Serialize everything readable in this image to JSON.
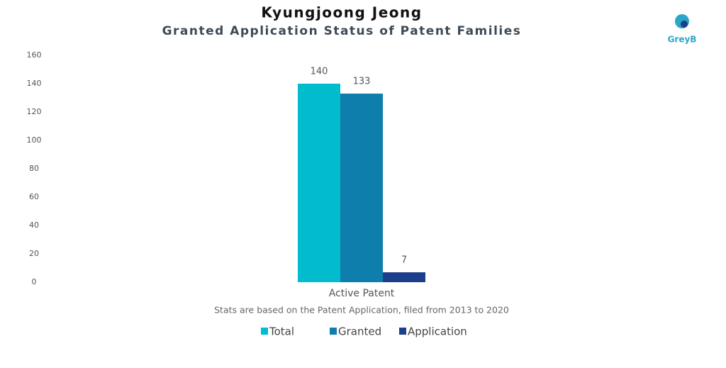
{
  "chart_data": {
    "type": "bar",
    "title": "Kyungjoong Jeong",
    "subtitle": "Granted Application Status of Patent Families",
    "logo": "GreyB",
    "note": "Stats are based on the Patent Application, filed from 2013 to 2020",
    "categories": [
      "Active Patent"
    ],
    "series": [
      {
        "name": "Total",
        "color": "#00bccc",
        "values": [
          140
        ]
      },
      {
        "name": "Granted",
        "color": "#0e7fad",
        "values": [
          133
        ]
      },
      {
        "name": "Application",
        "color": "#1b3f8a",
        "values": [
          7
        ]
      }
    ],
    "ylim": [
      0,
      160
    ],
    "yticks": [
      0,
      20,
      40,
      60,
      80,
      100,
      120,
      140,
      160
    ],
    "grid": false
  }
}
